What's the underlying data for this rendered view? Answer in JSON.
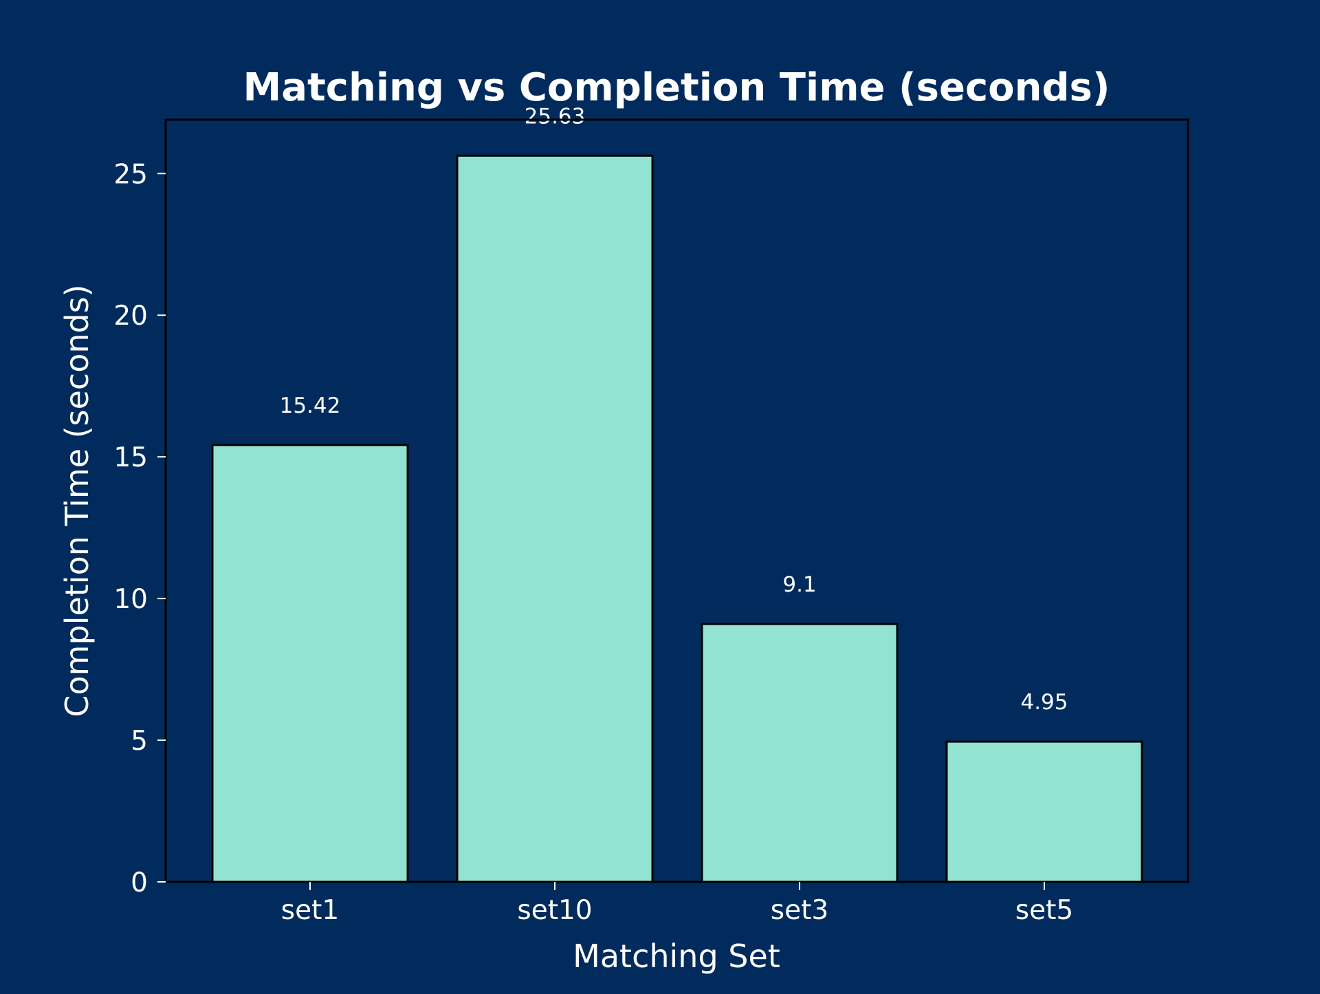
{
  "chart_data": {
    "type": "bar",
    "title": "Matching vs Completion Time (seconds)",
    "xlabel": "Matching Set",
    "ylabel": "Completion Time (seconds)",
    "categories": [
      "set1",
      "set10",
      "set3",
      "set5"
    ],
    "values": [
      15.42,
      25.63,
      9.1,
      4.95
    ],
    "value_labels": [
      "15.42",
      "25.63",
      "9.1",
      "4.95"
    ],
    "ylim": [
      0,
      26.9
    ],
    "yticks": [
      0,
      5,
      10,
      15,
      20,
      25
    ],
    "ytick_labels": [
      "0",
      "5",
      "10",
      "15",
      "20",
      "25"
    ],
    "grid": false,
    "legend": "none",
    "colors": {
      "background": "#002b5c",
      "bar_fill": "#93e3d3",
      "bar_edge": "#000000",
      "axes_frame": "#000000",
      "text": "#ffffff"
    }
  }
}
